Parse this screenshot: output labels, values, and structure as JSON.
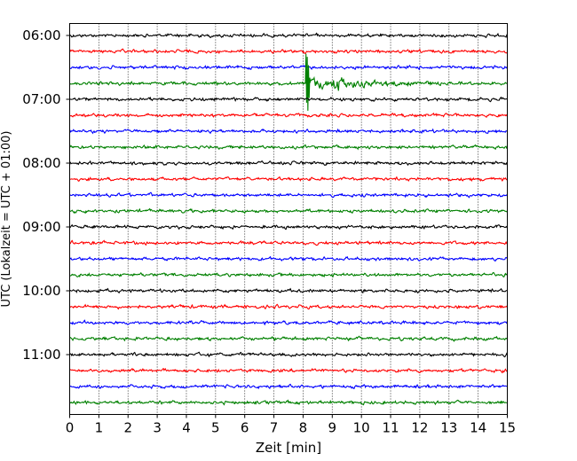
{
  "chart_data": {
    "type": "line",
    "title": "",
    "xlabel": "Zeit  [min]",
    "ylabel": "UTC (Lokalzeit = UTC + 01:00)",
    "xlim": [
      0,
      15
    ],
    "x_ticks": [
      0,
      1,
      2,
      3,
      4,
      5,
      6,
      7,
      8,
      9,
      10,
      11,
      12,
      13,
      14,
      15
    ],
    "grid": {
      "vertical": true,
      "style": "dotted"
    },
    "y_ticks": [
      {
        "label": "06:00",
        "row": 0
      },
      {
        "label": "07:00",
        "row": 4
      },
      {
        "label": "08:00",
        "row": 8
      },
      {
        "label": "09:00",
        "row": 12
      },
      {
        "label": "10:00",
        "row": 16
      },
      {
        "label": "11:00",
        "row": 20
      }
    ],
    "trace_colors": [
      "#000000",
      "#ff0000",
      "#0000ff",
      "#008000"
    ],
    "series": [
      {
        "start": "06:00",
        "color": "#000000"
      },
      {
        "start": "06:15",
        "color": "#ff0000"
      },
      {
        "start": "06:30",
        "color": "#0000ff"
      },
      {
        "start": "06:45",
        "color": "#008000",
        "event": {
          "onset_min": 8.1,
          "secondary_min": 9.2,
          "end_min": 12.5
        }
      },
      {
        "start": "07:00",
        "color": "#000000"
      },
      {
        "start": "07:15",
        "color": "#ff0000"
      },
      {
        "start": "07:30",
        "color": "#0000ff"
      },
      {
        "start": "07:45",
        "color": "#008000"
      },
      {
        "start": "08:00",
        "color": "#000000"
      },
      {
        "start": "08:15",
        "color": "#ff0000"
      },
      {
        "start": "08:30",
        "color": "#0000ff"
      },
      {
        "start": "08:45",
        "color": "#008000"
      },
      {
        "start": "09:00",
        "color": "#000000"
      },
      {
        "start": "09:15",
        "color": "#ff0000"
      },
      {
        "start": "09:30",
        "color": "#0000ff"
      },
      {
        "start": "09:45",
        "color": "#008000"
      },
      {
        "start": "10:00",
        "color": "#000000"
      },
      {
        "start": "10:15",
        "color": "#ff0000"
      },
      {
        "start": "10:30",
        "color": "#0000ff"
      },
      {
        "start": "10:45",
        "color": "#008000"
      },
      {
        "start": "11:00",
        "color": "#000000"
      },
      {
        "start": "11:15",
        "color": "#ff0000"
      },
      {
        "start": "11:30",
        "color": "#0000ff"
      },
      {
        "start": "11:45",
        "color": "#008000"
      }
    ]
  }
}
